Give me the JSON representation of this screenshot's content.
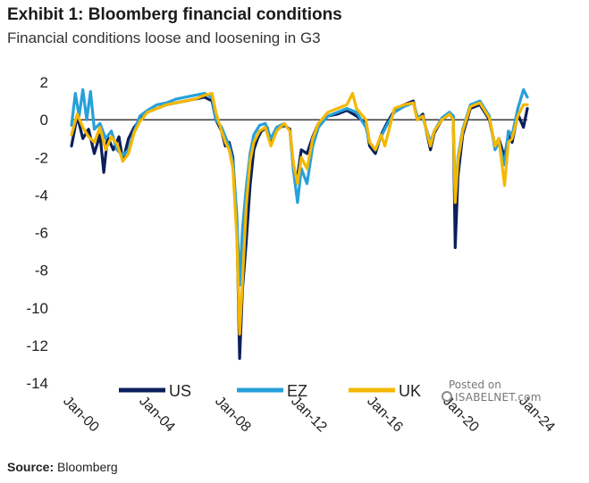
{
  "header": {
    "title": "Exhibit 1: Bloomberg financial conditions",
    "subtitle": "Financial conditions loose and loosening in G3"
  },
  "footer": {
    "source_label": "Source:",
    "source_value": " Bloomberg"
  },
  "watermark": {
    "line1": "Posted on",
    "line2": "ISABELNET.com"
  },
  "chart_data": {
    "type": "line",
    "ylim": [
      -14,
      2
    ],
    "yticks": [
      2,
      0,
      -2,
      -4,
      -6,
      -8,
      -10,
      -12,
      -14
    ],
    "xlim": [
      2000.0,
      2024.0
    ],
    "xticks": [
      {
        "label": "Jan-00",
        "value": 2000
      },
      {
        "label": "Jan-04",
        "value": 2004
      },
      {
        "label": "Jan-08",
        "value": 2008
      },
      {
        "label": "Jan-12",
        "value": 2012
      },
      {
        "label": "Jan-16",
        "value": 2016
      },
      {
        "label": "Jan-20",
        "value": 2020
      },
      {
        "label": "Jan-24",
        "value": 2024
      }
    ],
    "zero_line": true,
    "legend": "bottom-center",
    "series": [
      {
        "name": "US",
        "color": "#0b1f5c",
        "points": [
          [
            2000.0,
            -1.4
          ],
          [
            2000.3,
            0.2
          ],
          [
            2000.6,
            -1.0
          ],
          [
            2000.9,
            -0.5
          ],
          [
            2001.2,
            -1.8
          ],
          [
            2001.5,
            -0.8
          ],
          [
            2001.7,
            -2.8
          ],
          [
            2001.9,
            -0.9
          ],
          [
            2002.2,
            -1.6
          ],
          [
            2002.5,
            -0.9
          ],
          [
            2002.7,
            -2.2
          ],
          [
            2003.0,
            -1.0
          ],
          [
            2003.3,
            -0.4
          ],
          [
            2003.6,
            0.0
          ],
          [
            2004.0,
            0.4
          ],
          [
            2004.5,
            0.6
          ],
          [
            2005.0,
            0.8
          ],
          [
            2005.5,
            0.9
          ],
          [
            2006.0,
            1.0
          ],
          [
            2006.5,
            1.1
          ],
          [
            2007.0,
            1.2
          ],
          [
            2007.4,
            1.0
          ],
          [
            2007.6,
            0.0
          ],
          [
            2007.9,
            -0.6
          ],
          [
            2008.1,
            -1.4
          ],
          [
            2008.3,
            -1.2
          ],
          [
            2008.5,
            -2.0
          ],
          [
            2008.7,
            -5.5
          ],
          [
            2008.85,
            -12.7
          ],
          [
            2009.0,
            -9.0
          ],
          [
            2009.2,
            -6.5
          ],
          [
            2009.4,
            -3.5
          ],
          [
            2009.6,
            -1.6
          ],
          [
            2009.8,
            -1.0
          ],
          [
            2010.0,
            -0.6
          ],
          [
            2010.3,
            -0.4
          ],
          [
            2010.5,
            -1.2
          ],
          [
            2010.8,
            -0.5
          ],
          [
            2011.2,
            -0.3
          ],
          [
            2011.5,
            -0.5
          ],
          [
            2011.7,
            -2.8
          ],
          [
            2011.9,
            -3.0
          ],
          [
            2012.1,
            -1.6
          ],
          [
            2012.4,
            -1.8
          ],
          [
            2012.7,
            -0.9
          ],
          [
            2013.0,
            -0.2
          ],
          [
            2013.5,
            0.2
          ],
          [
            2014.0,
            0.3
          ],
          [
            2014.5,
            0.5
          ],
          [
            2015.0,
            0.2
          ],
          [
            2015.5,
            -0.2
          ],
          [
            2015.7,
            -1.4
          ],
          [
            2016.0,
            -1.8
          ],
          [
            2016.3,
            -0.8
          ],
          [
            2016.6,
            -0.2
          ],
          [
            2017.0,
            0.5
          ],
          [
            2017.5,
            0.8
          ],
          [
            2018.0,
            1.0
          ],
          [
            2018.2,
            0.0
          ],
          [
            2018.5,
            0.3
          ],
          [
            2018.9,
            -1.6
          ],
          [
            2019.1,
            -0.7
          ],
          [
            2019.5,
            0.0
          ],
          [
            2019.9,
            0.3
          ],
          [
            2020.1,
            0.2
          ],
          [
            2020.2,
            -6.8
          ],
          [
            2020.35,
            -3.0
          ],
          [
            2020.6,
            -0.8
          ],
          [
            2021.0,
            0.6
          ],
          [
            2021.5,
            0.8
          ],
          [
            2022.0,
            0.0
          ],
          [
            2022.3,
            -1.4
          ],
          [
            2022.5,
            -1.0
          ],
          [
            2022.8,
            -2.0
          ],
          [
            2023.0,
            -0.8
          ],
          [
            2023.2,
            -1.2
          ],
          [
            2023.5,
            0.3
          ],
          [
            2023.8,
            -0.4
          ],
          [
            2024.0,
            0.6
          ]
        ]
      },
      {
        "name": "EZ",
        "color": "#27a0da",
        "points": [
          [
            2000.0,
            -0.3
          ],
          [
            2000.2,
            1.4
          ],
          [
            2000.4,
            0.2
          ],
          [
            2000.6,
            1.6
          ],
          [
            2000.8,
            0.0
          ],
          [
            2001.0,
            1.5
          ],
          [
            2001.2,
            -0.5
          ],
          [
            2001.5,
            -0.2
          ],
          [
            2001.8,
            -1.0
          ],
          [
            2002.1,
            -0.6
          ],
          [
            2002.4,
            -1.6
          ],
          [
            2002.7,
            -1.9
          ],
          [
            2003.0,
            -1.6
          ],
          [
            2003.3,
            -0.6
          ],
          [
            2003.6,
            0.2
          ],
          [
            2004.0,
            0.5
          ],
          [
            2004.5,
            0.8
          ],
          [
            2005.0,
            0.9
          ],
          [
            2005.5,
            1.1
          ],
          [
            2006.0,
            1.2
          ],
          [
            2006.5,
            1.3
          ],
          [
            2007.0,
            1.4
          ],
          [
            2007.4,
            1.2
          ],
          [
            2007.6,
            0.0
          ],
          [
            2007.9,
            -0.4
          ],
          [
            2008.1,
            -0.9
          ],
          [
            2008.3,
            -1.4
          ],
          [
            2008.5,
            -2.2
          ],
          [
            2008.7,
            -5.0
          ],
          [
            2008.85,
            -8.8
          ],
          [
            2009.0,
            -5.8
          ],
          [
            2009.2,
            -3.6
          ],
          [
            2009.4,
            -1.8
          ],
          [
            2009.6,
            -0.8
          ],
          [
            2009.9,
            -0.3
          ],
          [
            2010.2,
            -0.2
          ],
          [
            2010.5,
            -1.0
          ],
          [
            2010.8,
            -0.4
          ],
          [
            2011.2,
            -0.2
          ],
          [
            2011.5,
            -0.6
          ],
          [
            2011.7,
            -2.8
          ],
          [
            2011.9,
            -4.4
          ],
          [
            2012.1,
            -2.6
          ],
          [
            2012.4,
            -3.4
          ],
          [
            2012.7,
            -1.4
          ],
          [
            2013.0,
            -0.4
          ],
          [
            2013.5,
            0.2
          ],
          [
            2014.0,
            0.4
          ],
          [
            2014.5,
            0.6
          ],
          [
            2015.0,
            0.4
          ],
          [
            2015.5,
            -0.4
          ],
          [
            2015.7,
            -1.2
          ],
          [
            2016.0,
            -1.6
          ],
          [
            2016.3,
            -0.9
          ],
          [
            2016.6,
            -0.3
          ],
          [
            2017.0,
            0.4
          ],
          [
            2017.5,
            0.7
          ],
          [
            2018.0,
            0.9
          ],
          [
            2018.2,
            0.2
          ],
          [
            2018.5,
            0.1
          ],
          [
            2018.9,
            -1.2
          ],
          [
            2019.1,
            -0.6
          ],
          [
            2019.5,
            0.1
          ],
          [
            2019.9,
            0.4
          ],
          [
            2020.1,
            0.2
          ],
          [
            2020.2,
            -4.2
          ],
          [
            2020.35,
            -2.0
          ],
          [
            2020.6,
            -0.5
          ],
          [
            2021.0,
            0.8
          ],
          [
            2021.5,
            1.0
          ],
          [
            2022.0,
            0.2
          ],
          [
            2022.3,
            -1.6
          ],
          [
            2022.5,
            -1.2
          ],
          [
            2022.8,
            -2.4
          ],
          [
            2023.0,
            -0.6
          ],
          [
            2023.2,
            -0.8
          ],
          [
            2023.5,
            0.6
          ],
          [
            2023.8,
            1.6
          ],
          [
            2024.0,
            1.2
          ]
        ]
      },
      {
        "name": "UK",
        "color": "#f5b800",
        "points": [
          [
            2000.0,
            -0.8
          ],
          [
            2000.3,
            0.3
          ],
          [
            2000.6,
            -0.4
          ],
          [
            2000.9,
            -0.9
          ],
          [
            2001.2,
            -1.2
          ],
          [
            2001.5,
            -0.4
          ],
          [
            2001.8,
            -1.6
          ],
          [
            2002.1,
            -0.9
          ],
          [
            2002.4,
            -1.3
          ],
          [
            2002.7,
            -2.2
          ],
          [
            2003.0,
            -1.8
          ],
          [
            2003.3,
            -0.7
          ],
          [
            2003.6,
            -0.1
          ],
          [
            2004.0,
            0.4
          ],
          [
            2004.5,
            0.6
          ],
          [
            2005.0,
            0.8
          ],
          [
            2005.5,
            0.9
          ],
          [
            2006.0,
            1.0
          ],
          [
            2006.5,
            1.1
          ],
          [
            2007.0,
            1.3
          ],
          [
            2007.4,
            1.4
          ],
          [
            2007.6,
            0.4
          ],
          [
            2007.9,
            -0.6
          ],
          [
            2008.1,
            -1.2
          ],
          [
            2008.3,
            -1.6
          ],
          [
            2008.5,
            -2.6
          ],
          [
            2008.7,
            -6.2
          ],
          [
            2008.85,
            -11.4
          ],
          [
            2009.0,
            -8.6
          ],
          [
            2009.2,
            -4.6
          ],
          [
            2009.4,
            -2.2
          ],
          [
            2009.6,
            -1.2
          ],
          [
            2009.9,
            -0.6
          ],
          [
            2010.2,
            -0.4
          ],
          [
            2010.5,
            -1.4
          ],
          [
            2010.8,
            -0.6
          ],
          [
            2011.2,
            -0.2
          ],
          [
            2011.5,
            -0.6
          ],
          [
            2011.7,
            -2.4
          ],
          [
            2011.9,
            -3.4
          ],
          [
            2012.1,
            -2.0
          ],
          [
            2012.4,
            -2.6
          ],
          [
            2012.7,
            -1.0
          ],
          [
            2013.0,
            -0.2
          ],
          [
            2013.5,
            0.4
          ],
          [
            2014.0,
            0.6
          ],
          [
            2014.5,
            0.8
          ],
          [
            2014.8,
            1.4
          ],
          [
            2015.0,
            0.6
          ],
          [
            2015.5,
            0.0
          ],
          [
            2015.7,
            -1.2
          ],
          [
            2016.0,
            -1.6
          ],
          [
            2016.3,
            -0.8
          ],
          [
            2016.5,
            -1.4
          ],
          [
            2016.8,
            -0.2
          ],
          [
            2017.0,
            0.6
          ],
          [
            2017.5,
            0.8
          ],
          [
            2018.0,
            0.9
          ],
          [
            2018.2,
            0.0
          ],
          [
            2018.5,
            0.2
          ],
          [
            2018.9,
            -1.4
          ],
          [
            2019.1,
            -0.6
          ],
          [
            2019.5,
            0.0
          ],
          [
            2019.9,
            0.3
          ],
          [
            2020.1,
            0.0
          ],
          [
            2020.2,
            -4.4
          ],
          [
            2020.35,
            -2.2
          ],
          [
            2020.6,
            -0.6
          ],
          [
            2021.0,
            0.7
          ],
          [
            2021.5,
            0.9
          ],
          [
            2022.0,
            0.1
          ],
          [
            2022.3,
            -1.4
          ],
          [
            2022.5,
            -1.0
          ],
          [
            2022.8,
            -3.5
          ],
          [
            2023.0,
            -1.2
          ],
          [
            2023.2,
            -1.0
          ],
          [
            2023.5,
            0.2
          ],
          [
            2023.8,
            0.8
          ],
          [
            2024.0,
            0.8
          ]
        ]
      }
    ]
  }
}
